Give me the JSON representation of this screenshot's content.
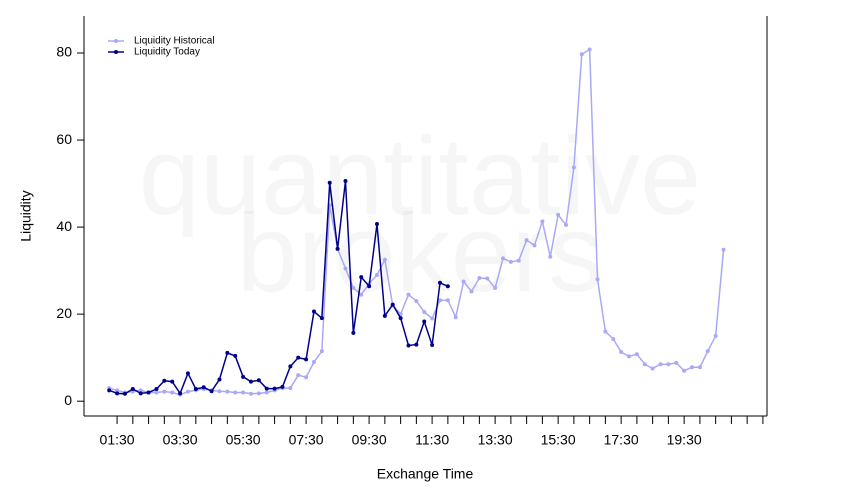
{
  "chart_data": {
    "type": "line",
    "xlabel": "Exchange Time",
    "ylabel": "Liquidity",
    "watermark": [
      "quantitative",
      "brokers"
    ],
    "legend": "top-left",
    "x": [
      1.25,
      1.5,
      1.75,
      2,
      2.25,
      2.5,
      2.75,
      3,
      3.25,
      3.5,
      3.75,
      4,
      4.25,
      4.5,
      4.75,
      5,
      5.25,
      5.5,
      5.75,
      6,
      6.25,
      6.5,
      6.75,
      7,
      7.25,
      7.5,
      7.75,
      8,
      8.25,
      8.5,
      8.75,
      9,
      9.25,
      9.5,
      9.75,
      10,
      10.25,
      10.5,
      10.75,
      11,
      11.25,
      11.5,
      11.75,
      12,
      12.25,
      12.5,
      12.75,
      13,
      13.25,
      13.5,
      13.75,
      14,
      14.25,
      14.5,
      14.75,
      15,
      15.25,
      15.5,
      15.75,
      16,
      16.25,
      16.5,
      16.75,
      17,
      17.25,
      17.5,
      17.75,
      18,
      18.25,
      18.5,
      18.75,
      19,
      19.25,
      19.5,
      19.75,
      20,
      20.25,
      20.5,
      20.75,
      21
    ],
    "series": [
      {
        "name": "Liquidity Historical",
        "color": "#a9a9f5",
        "values": [
          3,
          2.5,
          2,
          2.2,
          2.5,
          2,
          2,
          2.2,
          2,
          1.5,
          2.2,
          2.5,
          2.8,
          2.5,
          2.3,
          2.2,
          2,
          2,
          1.7,
          1.8,
          2,
          2.5,
          3,
          3,
          6,
          5.5,
          9,
          11.5,
          45,
          35,
          30.5,
          26,
          24.5,
          27,
          29,
          32.5,
          22,
          20,
          24.5,
          23,
          20.5,
          19,
          23.2,
          23.2,
          19.3,
          27.5,
          25.2,
          28.3,
          28.2,
          26,
          32.8,
          32,
          32.3,
          37,
          35.8,
          41.3,
          33.2,
          42.8,
          40.5,
          53.7,
          79.7,
          80.8,
          28,
          16,
          14.3,
          11.3,
          10.3,
          10.8,
          8.5,
          7.5,
          8.5,
          8.5,
          8.8,
          7,
          7.8,
          7.8,
          11.5,
          15,
          34.8,
          null
        ]
      },
      {
        "name": "Liquidity Today",
        "color": "#00008b",
        "values": [
          2.5,
          1.8,
          1.7,
          2.8,
          1.8,
          2,
          2.8,
          4.7,
          4.5,
          1.8,
          6.4,
          2.8,
          3.2,
          2.3,
          5,
          11.1,
          10.4,
          5.6,
          4.5,
          4.8,
          2.9,
          2.9,
          3.3,
          8,
          10,
          9.6,
          20.6,
          19.1,
          50.2,
          35,
          50.6,
          15.7,
          28.5,
          26.4,
          40.7,
          19.6,
          22.2,
          19.1,
          12.8,
          13,
          18.3,
          12.9,
          27.2,
          26.4,
          null,
          null,
          null,
          null,
          null,
          null,
          null,
          null,
          null,
          null,
          null,
          null,
          null,
          null,
          null,
          null,
          null,
          null,
          null,
          null,
          null,
          null,
          null,
          null,
          null,
          null,
          null,
          null,
          null,
          null,
          null,
          null,
          null,
          null,
          null,
          null
        ]
      }
    ],
    "xlim": [
      0.45,
      22.13
    ],
    "ylim": [
      -3.4,
      88.5
    ],
    "yticks": [
      0,
      20,
      40,
      60,
      80
    ],
    "xticks": [
      {
        "value": 1.5,
        "label": "01:30"
      },
      {
        "value": 2,
        "label": null
      },
      {
        "value": 2.5,
        "label": null
      },
      {
        "value": 3,
        "label": null
      },
      {
        "value": 3.5,
        "label": "03:30"
      },
      {
        "value": 4,
        "label": null
      },
      {
        "value": 4.5,
        "label": null
      },
      {
        "value": 5,
        "label": null
      },
      {
        "value": 5.5,
        "label": "05:30"
      },
      {
        "value": 6,
        "label": null
      },
      {
        "value": 6.5,
        "label": null
      },
      {
        "value": 7,
        "label": null
      },
      {
        "value": 7.5,
        "label": "07:30"
      },
      {
        "value": 8,
        "label": null
      },
      {
        "value": 8.5,
        "label": null
      },
      {
        "value": 9,
        "label": null
      },
      {
        "value": 9.5,
        "label": "09:30"
      },
      {
        "value": 10,
        "label": null
      },
      {
        "value": 10.5,
        "label": null
      },
      {
        "value": 11,
        "label": null
      },
      {
        "value": 11.5,
        "label": "11:30"
      },
      {
        "value": 12,
        "label": null
      },
      {
        "value": 12.5,
        "label": null
      },
      {
        "value": 13,
        "label": null
      },
      {
        "value": 13.5,
        "label": "13:30"
      },
      {
        "value": 14,
        "label": null
      },
      {
        "value": 14.5,
        "label": null
      },
      {
        "value": 15,
        "label": null
      },
      {
        "value": 15.5,
        "label": "15:30"
      },
      {
        "value": 16,
        "label": null
      },
      {
        "value": 16.5,
        "label": null
      },
      {
        "value": 17,
        "label": null
      },
      {
        "value": 17.5,
        "label": "17:30"
      },
      {
        "value": 18,
        "label": null
      },
      {
        "value": 18.5,
        "label": null
      },
      {
        "value": 19,
        "label": null
      },
      {
        "value": 19.5,
        "label": "19:30"
      },
      {
        "value": 20,
        "label": null
      },
      {
        "value": 20.5,
        "label": null
      },
      {
        "value": 21,
        "label": null
      },
      {
        "value": 21.5,
        "label": null
      },
      {
        "value": 22,
        "label": null
      }
    ],
    "grid": false
  }
}
